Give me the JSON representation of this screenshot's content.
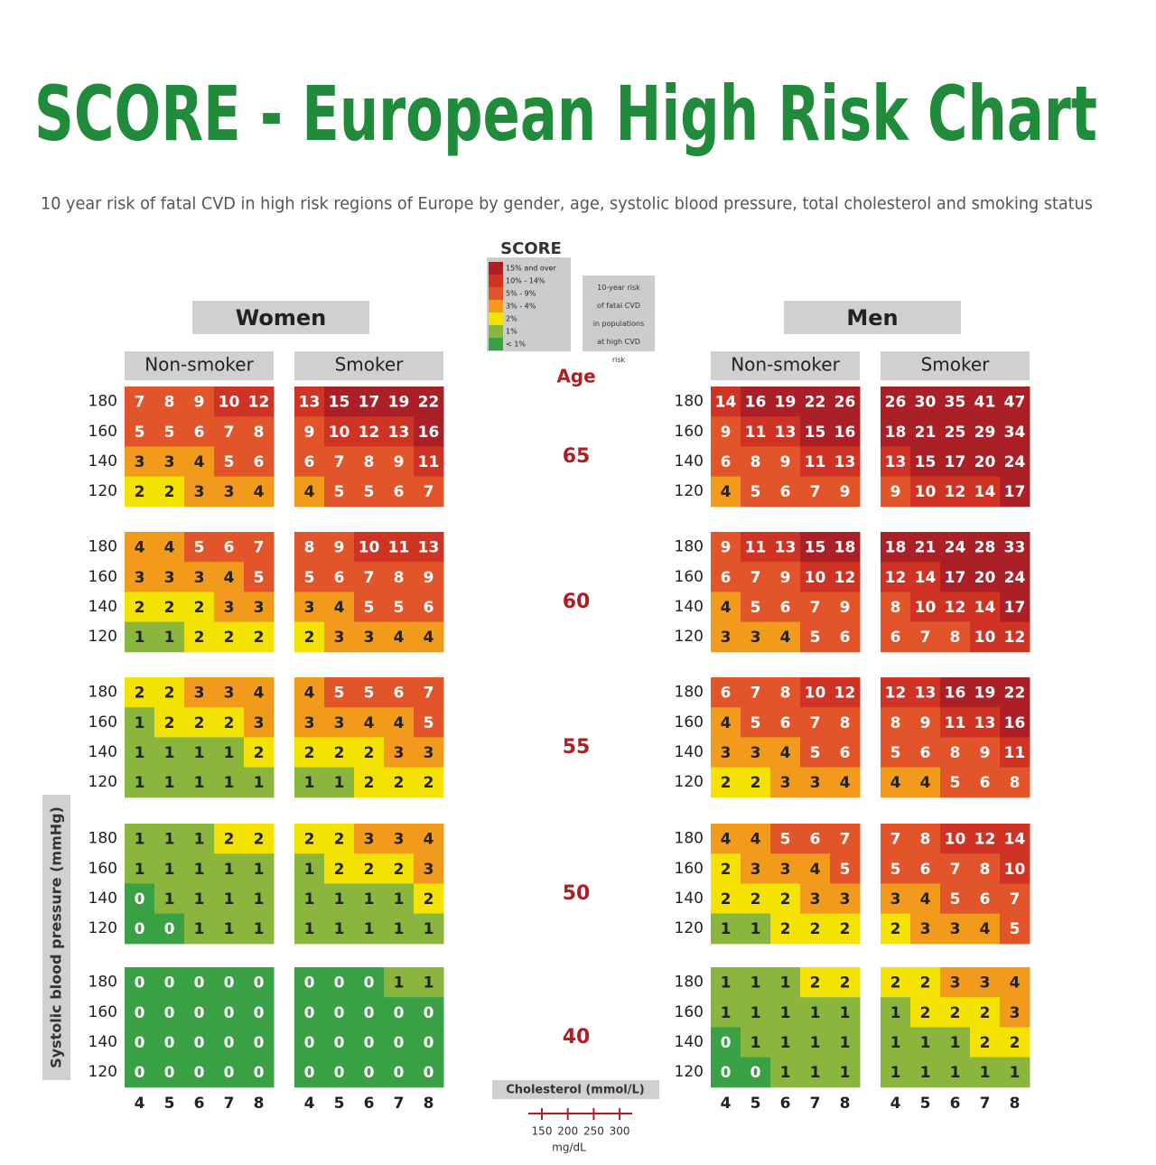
{
  "chart_data": {
    "type": "heatmap",
    "title": "SCORE - European High Risk Chart",
    "subtitle": "10 year risk of fatal CVD in high risk regions of Europe by gender, age, systolic blood pressure, total cholesterol and smoking status",
    "logo": "SCORE",
    "legend": [
      {
        "label": "15% and over",
        "min": 15,
        "color": "#ab1f26",
        "text_color": "#ffffff"
      },
      {
        "label": "10% - 14%",
        "min": 10,
        "color": "#cf3324",
        "text_color": "#ffffff"
      },
      {
        "label": "5% - 9%",
        "min": 5,
        "color": "#e2542a",
        "text_color": "#ffffff"
      },
      {
        "label": "3% - 4%",
        "min": 3,
        "color": "#f19a1c",
        "text_color": "#222222"
      },
      {
        "label": "2%",
        "min": 2,
        "color": "#f4e200",
        "text_color": "#222222"
      },
      {
        "label": "1%",
        "min": 1,
        "color": "#8bb63e",
        "text_color": "#222222"
      },
      {
        "label": "< 1%",
        "min": 0,
        "color": "#39a043",
        "text_color": "#ffffff"
      }
    ],
    "legend_note": "10-year risk of fatal CVD in populations at high CVD risk",
    "age_label": "Age",
    "y_label": "Systolic blood pressure (mmHg)",
    "x_label": "Cholesterol (mmol/L)",
    "sbp": [
      180,
      160,
      140,
      120
    ],
    "cholesterol": [
      4,
      5,
      6,
      7,
      8
    ],
    "ages": [
      65,
      60,
      55,
      50,
      40
    ],
    "mgdl_ticks": [
      150,
      200,
      250,
      300
    ],
    "mgdl_label": "mg/dL",
    "groups": [
      {
        "name": "Women",
        "panels": [
          {
            "name": "Non-smoker",
            "values": [
              [
                [
                  7,
                  8,
                  9,
                  10,
                  12
                ],
                [
                  5,
                  5,
                  6,
                  7,
                  8
                ],
                [
                  3,
                  3,
                  4,
                  5,
                  6
                ],
                [
                  2,
                  2,
                  3,
                  3,
                  4
                ]
              ],
              [
                [
                  4,
                  4,
                  5,
                  6,
                  7
                ],
                [
                  3,
                  3,
                  3,
                  4,
                  5
                ],
                [
                  2,
                  2,
                  2,
                  3,
                  3
                ],
                [
                  1,
                  1,
                  2,
                  2,
                  2
                ]
              ],
              [
                [
                  2,
                  2,
                  3,
                  3,
                  4
                ],
                [
                  1,
                  2,
                  2,
                  2,
                  3
                ],
                [
                  1,
                  1,
                  1,
                  1,
                  2
                ],
                [
                  1,
                  1,
                  1,
                  1,
                  1
                ]
              ],
              [
                [
                  1,
                  1,
                  1,
                  2,
                  2
                ],
                [
                  1,
                  1,
                  1,
                  1,
                  1
                ],
                [
                  0,
                  1,
                  1,
                  1,
                  1
                ],
                [
                  0,
                  0,
                  1,
                  1,
                  1
                ]
              ],
              [
                [
                  0,
                  0,
                  0,
                  0,
                  0
                ],
                [
                  0,
                  0,
                  0,
                  0,
                  0
                ],
                [
                  0,
                  0,
                  0,
                  0,
                  0
                ],
                [
                  0,
                  0,
                  0,
                  0,
                  0
                ]
              ]
            ]
          },
          {
            "name": "Smoker",
            "values": [
              [
                [
                  13,
                  15,
                  17,
                  19,
                  22
                ],
                [
                  9,
                  10,
                  12,
                  13,
                  16
                ],
                [
                  6,
                  7,
                  8,
                  9,
                  11
                ],
                [
                  4,
                  5,
                  5,
                  6,
                  7
                ]
              ],
              [
                [
                  8,
                  9,
                  10,
                  11,
                  13
                ],
                [
                  5,
                  6,
                  7,
                  8,
                  9
                ],
                [
                  3,
                  4,
                  5,
                  5,
                  6
                ],
                [
                  2,
                  3,
                  3,
                  4,
                  4
                ]
              ],
              [
                [
                  4,
                  5,
                  5,
                  6,
                  7
                ],
                [
                  3,
                  3,
                  4,
                  4,
                  5
                ],
                [
                  2,
                  2,
                  2,
                  3,
                  3
                ],
                [
                  1,
                  1,
                  2,
                  2,
                  2
                ]
              ],
              [
                [
                  2,
                  2,
                  3,
                  3,
                  4
                ],
                [
                  1,
                  2,
                  2,
                  2,
                  3
                ],
                [
                  1,
                  1,
                  1,
                  1,
                  2
                ],
                [
                  1,
                  1,
                  1,
                  1,
                  1
                ]
              ],
              [
                [
                  0,
                  0,
                  0,
                  1,
                  1
                ],
                [
                  0,
                  0,
                  0,
                  0,
                  0
                ],
                [
                  0,
                  0,
                  0,
                  0,
                  0
                ],
                [
                  0,
                  0,
                  0,
                  0,
                  0
                ]
              ]
            ]
          }
        ]
      },
      {
        "name": "Men",
        "panels": [
          {
            "name": "Non-smoker",
            "values": [
              [
                [
                  14,
                  16,
                  19,
                  22,
                  26
                ],
                [
                  9,
                  11,
                  13,
                  15,
                  16
                ],
                [
                  6,
                  8,
                  9,
                  11,
                  13
                ],
                [
                  4,
                  5,
                  6,
                  7,
                  9
                ]
              ],
              [
                [
                  9,
                  11,
                  13,
                  15,
                  18
                ],
                [
                  6,
                  7,
                  9,
                  10,
                  12
                ],
                [
                  4,
                  5,
                  6,
                  7,
                  9
                ],
                [
                  3,
                  3,
                  4,
                  5,
                  6
                ]
              ],
              [
                [
                  6,
                  7,
                  8,
                  10,
                  12
                ],
                [
                  4,
                  5,
                  6,
                  7,
                  8
                ],
                [
                  3,
                  3,
                  4,
                  5,
                  6
                ],
                [
                  2,
                  2,
                  3,
                  3,
                  4
                ]
              ],
              [
                [
                  4,
                  4,
                  5,
                  6,
                  7
                ],
                [
                  2,
                  3,
                  3,
                  4,
                  5
                ],
                [
                  2,
                  2,
                  2,
                  3,
                  3
                ],
                [
                  1,
                  1,
                  2,
                  2,
                  2
                ]
              ],
              [
                [
                  1,
                  1,
                  1,
                  2,
                  2
                ],
                [
                  1,
                  1,
                  1,
                  1,
                  1
                ],
                [
                  0,
                  1,
                  1,
                  1,
                  1
                ],
                [
                  0,
                  0,
                  1,
                  1,
                  1
                ]
              ]
            ]
          },
          {
            "name": "Smoker",
            "values": [
              [
                [
                  26,
                  30,
                  35,
                  41,
                  47
                ],
                [
                  18,
                  21,
                  25,
                  29,
                  34
                ],
                [
                  13,
                  15,
                  17,
                  20,
                  24
                ],
                [
                  9,
                  10,
                  12,
                  14,
                  17
                ]
              ],
              [
                [
                  18,
                  21,
                  24,
                  28,
                  33
                ],
                [
                  12,
                  14,
                  17,
                  20,
                  24
                ],
                [
                  8,
                  10,
                  12,
                  14,
                  17
                ],
                [
                  6,
                  7,
                  8,
                  10,
                  12
                ]
              ],
              [
                [
                  12,
                  13,
                  16,
                  19,
                  22
                ],
                [
                  8,
                  9,
                  11,
                  13,
                  16
                ],
                [
                  5,
                  6,
                  8,
                  9,
                  11
                ],
                [
                  4,
                  4,
                  5,
                  6,
                  8
                ]
              ],
              [
                [
                  7,
                  8,
                  10,
                  12,
                  14
                ],
                [
                  5,
                  6,
                  7,
                  8,
                  10
                ],
                [
                  3,
                  4,
                  5,
                  6,
                  7
                ],
                [
                  2,
                  3,
                  3,
                  4,
                  5
                ]
              ],
              [
                [
                  2,
                  2,
                  3,
                  3,
                  4
                ],
                [
                  1,
                  2,
                  2,
                  2,
                  3
                ],
                [
                  1,
                  1,
                  1,
                  2,
                  2
                ],
                [
                  1,
                  1,
                  1,
                  1,
                  1
                ]
              ]
            ]
          }
        ]
      }
    ]
  }
}
